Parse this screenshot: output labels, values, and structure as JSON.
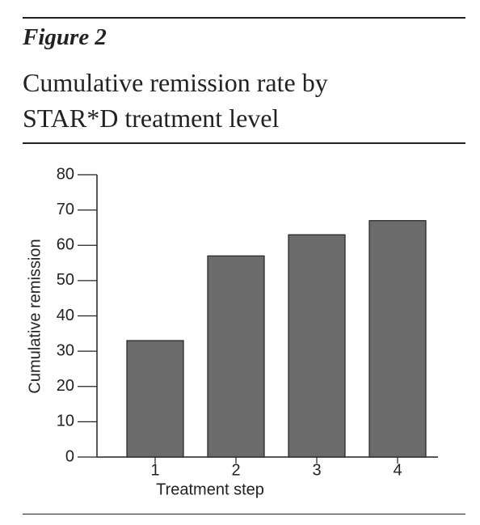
{
  "chart_data": {
    "type": "bar",
    "figure_label": "Figure 2",
    "title": "Cumulative remission rate by STAR*D treatment level",
    "x_label": "Treatment step",
    "y_label": "Cumulative remission",
    "categories": [
      "1",
      "2",
      "3",
      "4"
    ],
    "values": [
      33,
      57,
      63,
      67
    ],
    "color": "#6b6b6b",
    "ylim": [
      0,
      80
    ],
    "yticks": [
      0,
      10,
      20,
      30,
      40,
      50,
      60,
      70,
      80
    ],
    "grid": false
  }
}
